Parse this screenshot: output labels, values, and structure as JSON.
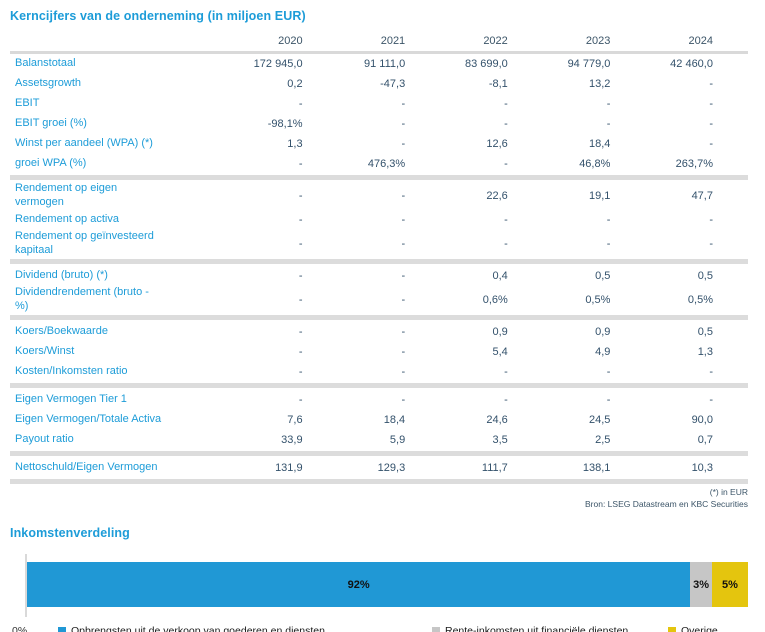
{
  "colors": {
    "accent_blue": "#1d9cd8",
    "value_text": "#33516b",
    "separator_gray": "#dcdcdc",
    "bar_blue": "#2098d5",
    "bar_gray": "#c6c6c6",
    "bar_yellow": "#e4c50e"
  },
  "table": {
    "title": "Kerncijfers van de onderneming (in miljoen EUR)",
    "years": [
      "2020",
      "2021",
      "2022",
      "2023",
      "2024"
    ],
    "sections": [
      {
        "rows": [
          {
            "label": "Balanstotaal",
            "values": [
              "172 945,0",
              "91 111,0",
              "83 699,0",
              "94 779,0",
              "42 460,0"
            ]
          },
          {
            "label": "Assetsgrowth",
            "values": [
              "0,2",
              "-47,3",
              "-8,1",
              "13,2",
              "-"
            ]
          },
          {
            "label": "EBIT",
            "values": [
              "-",
              "-",
              "-",
              "-",
              "-"
            ]
          },
          {
            "label": "EBIT groei (%)",
            "values": [
              "-98,1%",
              "-",
              "-",
              "-",
              "-"
            ]
          },
          {
            "label": "Winst per aandeel (WPA) (*)",
            "values": [
              "1,3",
              "-",
              "12,6",
              "18,4",
              "-"
            ]
          },
          {
            "label": "groei WPA (%)",
            "values": [
              "-",
              "476,3%",
              "-",
              "46,8%",
              "263,7%"
            ]
          }
        ]
      },
      {
        "rows": [
          {
            "label": "Rendement op eigen\nvermogen",
            "values": [
              "-",
              "-",
              "22,6",
              "19,1",
              "47,7"
            ]
          },
          {
            "label": "Rendement op activa",
            "values": [
              "-",
              "-",
              "-",
              "-",
              "-"
            ]
          },
          {
            "label": "Rendement op geïnvesteerd\nkapitaal",
            "values": [
              "-",
              "-",
              "-",
              "-",
              "-"
            ]
          }
        ]
      },
      {
        "rows": [
          {
            "label": "Dividend (bruto) (*)",
            "values": [
              "-",
              "-",
              "0,4",
              "0,5",
              "0,5"
            ]
          },
          {
            "label": "Dividendrendement (bruto -\n%)",
            "values": [
              "-",
              "-",
              "0,6%",
              "0,5%",
              "0,5%"
            ]
          }
        ]
      },
      {
        "rows": [
          {
            "label": "Koers/Boekwaarde",
            "values": [
              "-",
              "-",
              "0,9",
              "0,9",
              "0,5"
            ]
          },
          {
            "label": "Koers/Winst",
            "values": [
              "-",
              "-",
              "5,4",
              "4,9",
              "1,3"
            ]
          },
          {
            "label": "Kosten/Inkomsten ratio",
            "values": [
              "-",
              "-",
              "-",
              "-",
              "-"
            ]
          }
        ]
      },
      {
        "rows": [
          {
            "label": "Eigen Vermogen Tier 1",
            "values": [
              "-",
              "-",
              "-",
              "-",
              "-"
            ]
          },
          {
            "label": "Eigen Vermogen/Totale Activa",
            "values": [
              "7,6",
              "18,4",
              "24,6",
              "24,5",
              "90,0"
            ]
          },
          {
            "label": "Payout ratio",
            "values": [
              "33,9",
              "5,9",
              "3,5",
              "2,5",
              "0,7"
            ]
          }
        ]
      },
      {
        "rows": [
          {
            "label": "Nettoschuld/Eigen Vermogen",
            "values": [
              "131,9",
              "129,3",
              "111,7",
              "138,1",
              "10,3"
            ]
          }
        ]
      }
    ],
    "footnotes": [
      "(*) in EUR",
      "Bron: LSEG Datastream en KBC Securities"
    ]
  },
  "chart_data": {
    "type": "bar",
    "stacked": true,
    "orientation": "horizontal",
    "title": "Inkomstenverdeling",
    "axis_label": "0%",
    "legend_position": "bottom",
    "series": [
      {
        "name": "Opbrengsten uit de verkoop van goederen en diensten",
        "value": 92,
        "label": "92%",
        "color": "#2098d5"
      },
      {
        "name": "Rente-inkomsten uit financiële diensten",
        "value": 3,
        "label": "3%",
        "color": "#c6c6c6"
      },
      {
        "name": "Overige",
        "value": 5,
        "label": "5%",
        "color": "#e4c50e"
      }
    ]
  }
}
